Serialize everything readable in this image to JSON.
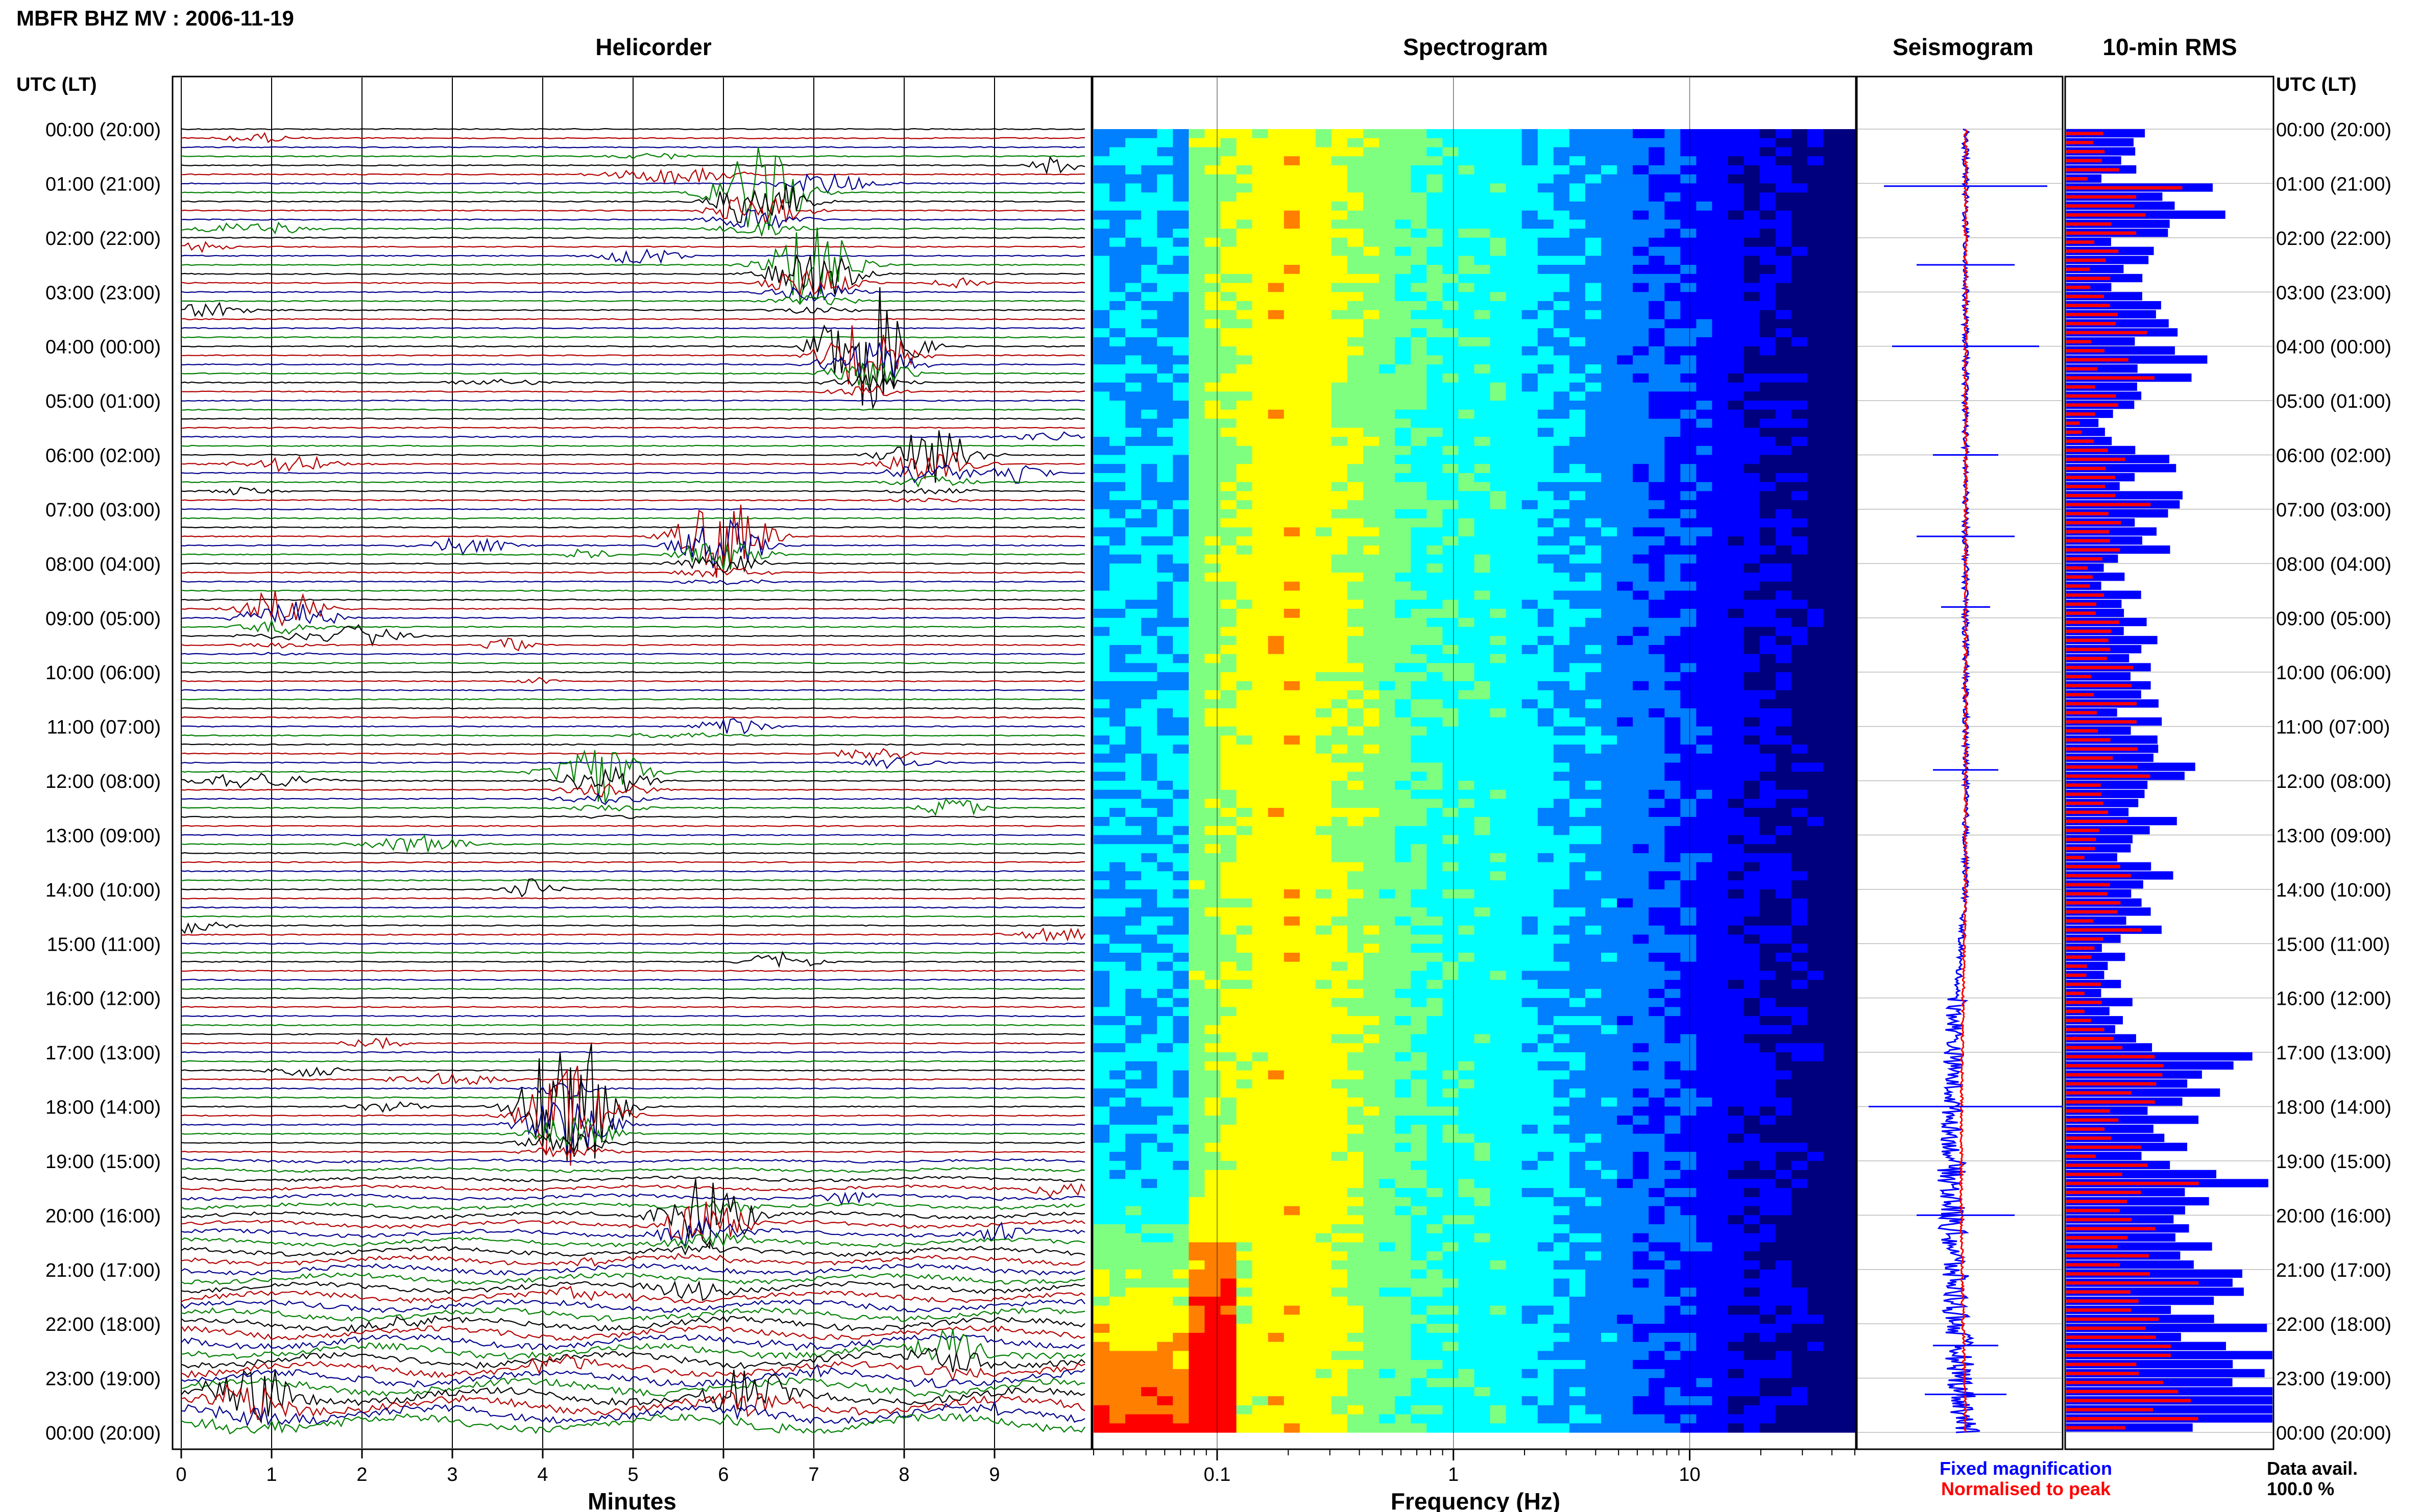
{
  "header": {
    "station_title": "MBFR BHZ MV : 2006-11-19"
  },
  "chart_data": [
    {
      "type": "line",
      "title": "Helicorder",
      "xlabel": "Minutes",
      "y_axis_title": "UTC (LT)",
      "x_ticks": [
        0,
        1,
        2,
        3,
        4,
        5,
        6,
        7,
        8,
        9
      ],
      "xlim": [
        0,
        10
      ],
      "rows_per_hour": 6,
      "trace_color_cycle": [
        "#000000",
        "#b30000",
        "#00008b",
        "#007f00"
      ],
      "hour_labels": [
        "00:00 (20:00)",
        "01:00 (21:00)",
        "02:00 (22:00)",
        "03:00 (23:00)",
        "04:00 (00:00)",
        "05:00 (01:00)",
        "06:00 (02:00)",
        "07:00 (03:00)",
        "08:00 (04:00)",
        "09:00 (05:00)",
        "10:00 (06:00)",
        "11:00 (07:00)",
        "12:00 (08:00)",
        "13:00 (09:00)",
        "14:00 (10:00)",
        "15:00 (11:00)",
        "16:00 (12:00)",
        "17:00 (13:00)",
        "18:00 (14:00)",
        "19:00 (15:00)",
        "20:00 (16:00)",
        "21:00 (17:00)",
        "22:00 (18:00)",
        "23:00 (19:00)",
        "00:00 (20:00)"
      ],
      "events": [
        {
          "hour": 1.05,
          "minute": 6.4,
          "amplitude": 10
        },
        {
          "hour": 2.5,
          "minute": 7.0,
          "amplitude": 6
        },
        {
          "hour": 4.0,
          "minute": 7.6,
          "amplitude": 9
        },
        {
          "hour": 6.0,
          "minute": 8.3,
          "amplitude": 4
        },
        {
          "hour": 7.5,
          "minute": 6.0,
          "amplitude": 6
        },
        {
          "hour": 8.8,
          "minute": 1.1,
          "amplitude": 3
        },
        {
          "hour": 11.8,
          "minute": 4.7,
          "amplitude": 4
        },
        {
          "hour": 18.0,
          "minute": 4.3,
          "amplitude": 12
        },
        {
          "hour": 20.0,
          "minute": 5.8,
          "amplitude": 6
        },
        {
          "hour": 22.4,
          "minute": 8.5,
          "amplitude": 4
        },
        {
          "hour": 23.3,
          "minute": 0.8,
          "amplitude": 5
        },
        {
          "hour": 23.3,
          "minute": 6.3,
          "amplitude": 4
        }
      ]
    },
    {
      "type": "heatmap",
      "title": "Spectrogram",
      "xlabel": "Frequency (Hz)",
      "x_scale": "log",
      "xlim": [
        0.03,
        50
      ],
      "x_tick_labels": [
        "0.1",
        "1",
        "10"
      ],
      "x_tick_values": [
        0.1,
        1,
        10
      ],
      "colormap": [
        "#00007f",
        "#0000ff",
        "#007fff",
        "#00ffff",
        "#7fff7f",
        "#ffff00",
        "#ff7f00",
        "#ff0000"
      ]
    },
    {
      "type": "line",
      "title": "Seismogram",
      "legend": [
        {
          "label": "Fixed magnification",
          "color": "#0000ff"
        },
        {
          "label": "Normalised to peak",
          "color": "#ff0000"
        }
      ]
    },
    {
      "type": "bar",
      "title": "10-min RMS",
      "y_axis_title": "UTC (LT)",
      "orientation": "horizontal",
      "series": [
        {
          "name": "Fixed magnification",
          "color": "#0000ff"
        },
        {
          "name": "Normalised to peak",
          "color": "#ff0000"
        }
      ],
      "hourly_level": [
        0.3,
        0.75,
        0.35,
        0.45,
        0.6,
        0.28,
        0.45,
        0.42,
        0.3,
        0.48,
        0.4,
        0.5,
        0.45,
        0.42,
        0.36,
        0.3,
        0.35,
        0.7,
        0.62,
        0.82,
        0.85,
        0.88,
        0.92,
        0.95
      ],
      "data_availability": {
        "label": "Data avail.",
        "value": "100.0 %"
      }
    }
  ]
}
